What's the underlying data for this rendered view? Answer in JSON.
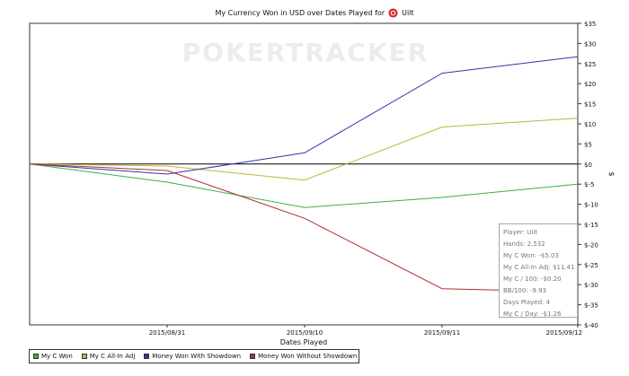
{
  "chart_data": {
    "type": "line",
    "title": "My Currency Won in USD over Dates Played for",
    "player_name": "Uilt",
    "watermark": "POKERTRACKER",
    "xlabel": "Dates Played",
    "ylabel": "$",
    "x": [
      "",
      "2015/08/31",
      "2015/09/10",
      "2015/09/11",
      "2015/09/12"
    ],
    "ylim": [
      -40,
      35
    ],
    "y_ticks": [
      35,
      30,
      25,
      20,
      15,
      10,
      5,
      0,
      -5,
      -10,
      -15,
      -20,
      -25,
      -30,
      -35,
      -40
    ],
    "y_tick_labels": [
      "$35",
      "$30",
      "$25",
      "$20",
      "$15",
      "$10",
      "$5",
      "$0",
      "$-5",
      "$-10",
      "$-15",
      "$-20",
      "$-25",
      "$-30",
      "$-35",
      "$-40"
    ],
    "grid": false,
    "legend_position": "bottom-left",
    "series": [
      {
        "name": "My C Won",
        "color": "#3cb043",
        "values": [
          0,
          -4.5,
          -10.8,
          -8.3,
          -5.0
        ]
      },
      {
        "name": "My C All-In Adj",
        "color": "#b8b83a",
        "values": [
          0,
          -0.5,
          -4.0,
          9.2,
          11.4
        ]
      },
      {
        "name": "Money Won With Showdown",
        "color": "#3333aa",
        "values": [
          0,
          -2.5,
          2.8,
          22.6,
          26.7
        ]
      },
      {
        "name": "Money Won Without Showdown",
        "color": "#b03030",
        "values": [
          0,
          -1.6,
          -13.5,
          -31.0,
          -31.8
        ]
      }
    ]
  },
  "stats": {
    "lines": [
      "Player: Uilt",
      "Hands: 2,532",
      "My C Won: -$5.03",
      "My C All-In Adj: $11.41",
      "My C / 100: -$0.20",
      "BB/100: -9.93",
      "Days Played: 4",
      "My C / Day: -$1.26"
    ]
  }
}
